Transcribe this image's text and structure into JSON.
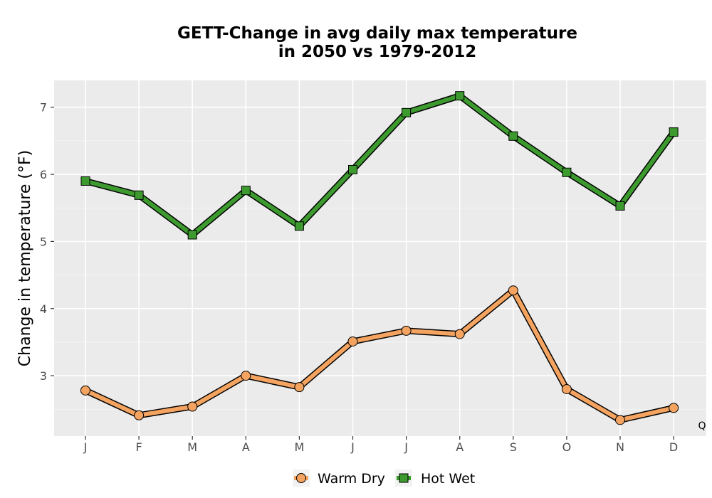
{
  "chart_data": {
    "type": "line",
    "title_line1": "GETT-Change in avg daily max temperature",
    "title_line2": "in 2050 vs 1979-2012",
    "xlabel": "",
    "ylabel": "Change in temperature (°F)",
    "categories": [
      "J",
      "F",
      "M",
      "A",
      "M",
      "J",
      "J",
      "A",
      "S",
      "O",
      "N",
      "D"
    ],
    "ylim": [
      2.1,
      7.4
    ],
    "yticks": [
      3,
      4,
      5,
      6,
      7
    ],
    "grid": true,
    "legend_position": "bottom",
    "corner_label": "Q",
    "series": [
      {
        "name": "Warm Dry",
        "marker": "circle",
        "color": "#f4a460",
        "values": [
          2.78,
          2.41,
          2.54,
          3.0,
          2.83,
          3.51,
          3.67,
          3.62,
          4.27,
          2.8,
          2.34,
          2.52
        ]
      },
      {
        "name": "Hot Wet",
        "marker": "square",
        "color": "#3c9a2e",
        "values": [
          5.9,
          5.69,
          5.1,
          5.76,
          5.23,
          6.07,
          6.92,
          7.17,
          6.57,
          6.03,
          5.53,
          6.63
        ]
      }
    ]
  }
}
